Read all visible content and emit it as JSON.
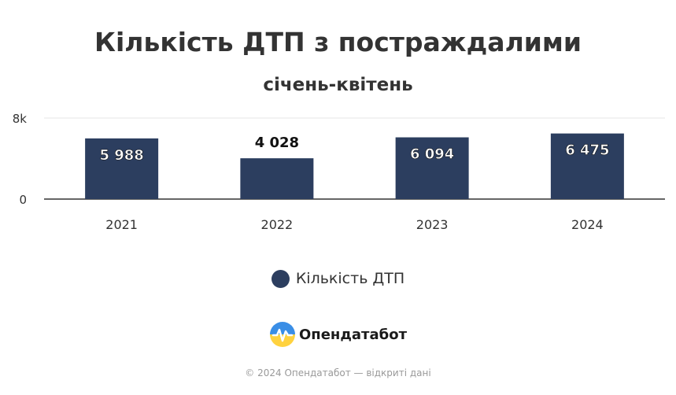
{
  "chart_data": {
    "type": "bar",
    "title": "Кількість ДТП з постраждалими",
    "subtitle": "січень-квітень",
    "categories": [
      "2021",
      "2022",
      "2023",
      "2024"
    ],
    "series": [
      {
        "name": "Кількість ДТП",
        "values": [
          5988,
          4028,
          6094,
          6475
        ],
        "color": "#2c3e5f"
      }
    ],
    "data_labels": [
      "5 988",
      "4 028",
      "6 094",
      "6 475"
    ],
    "yticks": [
      {
        "value": 0,
        "label": "0"
      },
      {
        "value": 8000,
        "label": "8k"
      }
    ],
    "ylim": [
      0,
      8000
    ],
    "grid": true,
    "legend": "bottom-center"
  },
  "branding": {
    "logo_text": "Опендатабот",
    "footer": "© 2024 Опендатабот — відкриті дані"
  },
  "colors": {
    "bar": "#2c3e5f",
    "text": "#333333",
    "footer": "#999999"
  }
}
